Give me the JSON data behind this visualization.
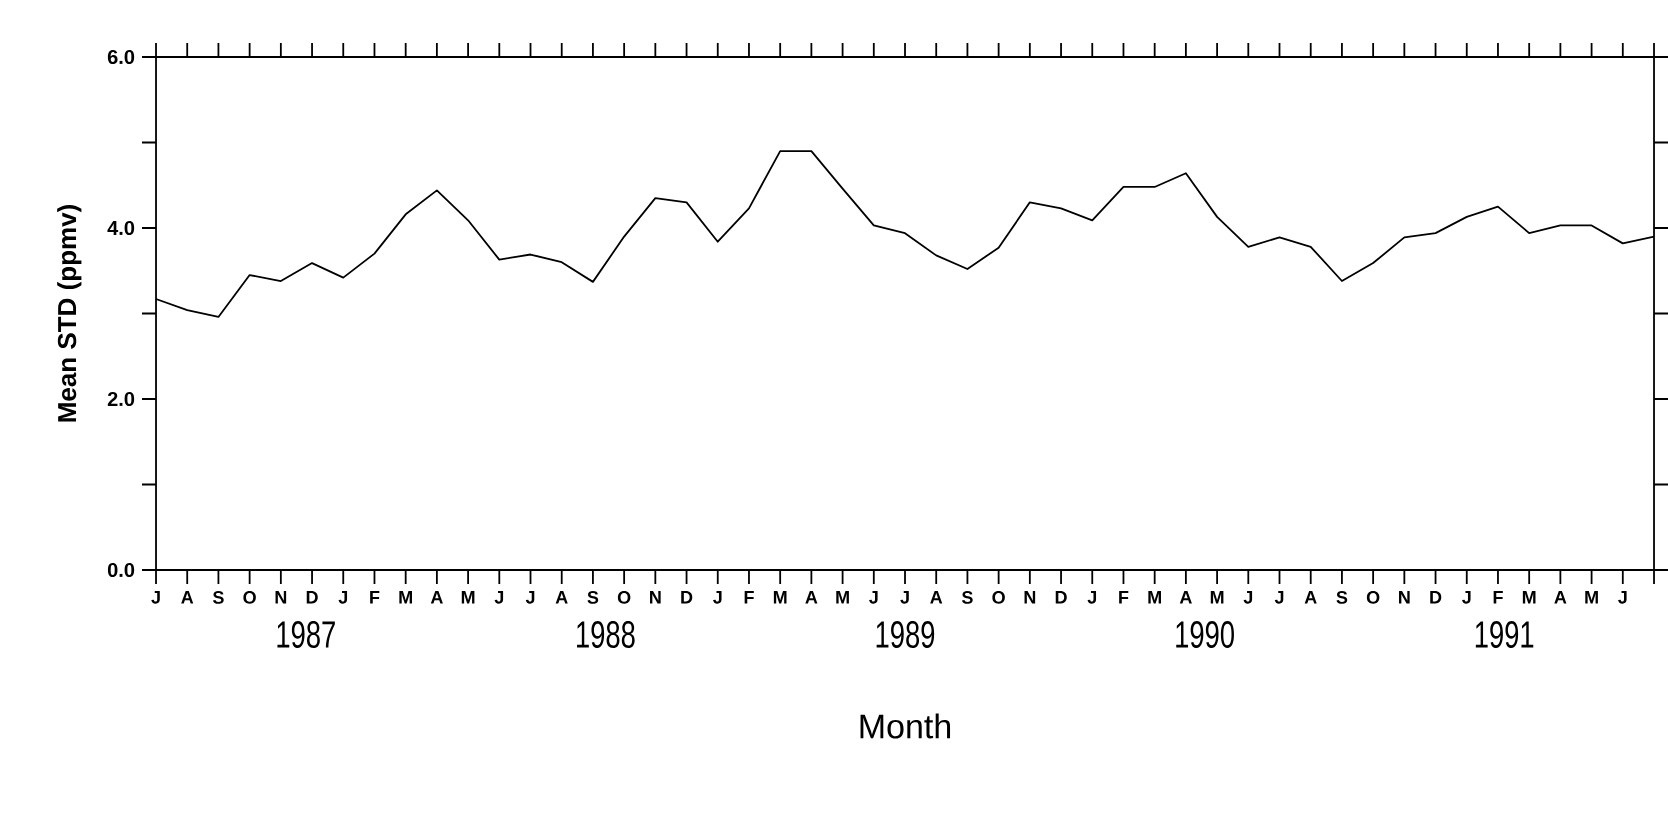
{
  "chart_data": {
    "type": "line",
    "xlabel": "Month",
    "ylabel": "Mean STD (ppmv)",
    "categories": [
      "J",
      "A",
      "S",
      "O",
      "N",
      "D",
      "J",
      "F",
      "M",
      "A",
      "M",
      "J",
      "J",
      "A",
      "S",
      "O",
      "N",
      "D",
      "J",
      "F",
      "M",
      "A",
      "M",
      "J",
      "J",
      "A",
      "S",
      "O",
      "N",
      "D",
      "J",
      "F",
      "M",
      "A",
      "M",
      "J",
      "J",
      "A",
      "S",
      "O",
      "N",
      "D",
      "J",
      "F",
      "M",
      "A",
      "M",
      "J",
      null
    ],
    "series": [
      {
        "color": "#000000",
        "values": [
          3.17,
          3.04,
          2.96,
          3.45,
          3.38,
          3.59,
          3.42,
          3.7,
          4.16,
          4.44,
          4.09,
          3.63,
          3.69,
          3.6,
          3.37,
          3.9,
          4.35,
          4.3,
          3.84,
          4.23,
          4.9,
          4.9,
          4.46,
          4.03,
          3.94,
          3.68,
          3.52,
          3.77,
          4.3,
          4.23,
          4.09,
          4.48,
          4.48,
          4.64,
          4.13,
          3.78,
          3.89,
          3.78,
          3.38,
          3.59,
          3.89,
          3.94,
          4.13,
          4.25,
          3.94,
          4.03,
          4.03,
          3.82,
          3.9
        ]
      }
    ],
    "annotations": [
      "1987",
      "1988",
      "1989",
      "1990",
      "1991"
    ],
    "ylim": [
      0,
      6
    ],
    "yticks": [
      {
        "value": 0,
        "label": "0.0"
      },
      {
        "value": 1,
        "label": null
      },
      {
        "value": 2,
        "label": "2.0"
      },
      {
        "value": 3,
        "label": null
      },
      {
        "value": 4,
        "label": "4.0"
      },
      {
        "value": 5,
        "label": null
      },
      {
        "value": 6,
        "label": "6.0"
      }
    ]
  }
}
